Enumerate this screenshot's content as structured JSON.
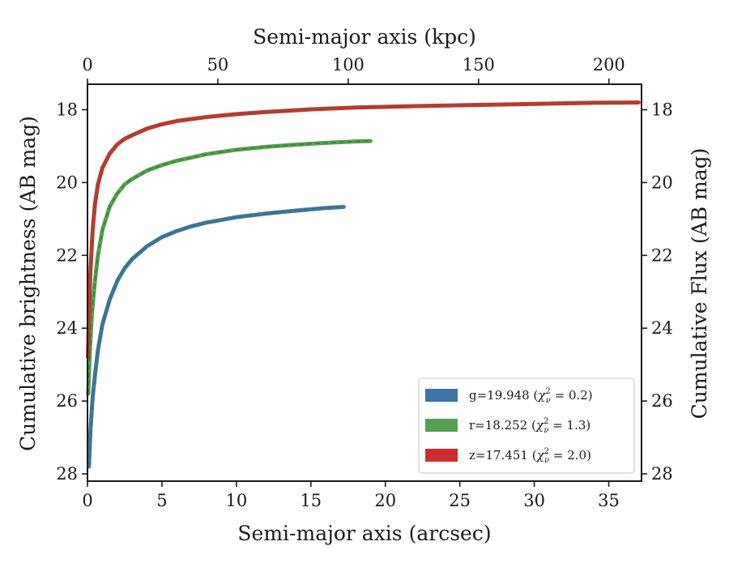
{
  "chart_data": {
    "type": "line",
    "xlabel": "Semi-major axis (arcsec)",
    "xlabel_top": "Semi-major axis (kpc)",
    "ylabel": "Cumulative brightness (AB mag)",
    "ylabel_right": "Cumulative Flux (AB mag)",
    "xlim": [
      0,
      37.2
    ],
    "ylim": [
      28.2,
      17.3
    ],
    "xlim_top_kpc": [
      0,
      212.5
    ],
    "y_inverted": true,
    "x_ticks": [
      0,
      5,
      10,
      15,
      20,
      25,
      30,
      35
    ],
    "x_tick_labels": [
      "0",
      "5",
      "10",
      "15",
      "20",
      "25",
      "30",
      "35"
    ],
    "top_ticks_kpc": [
      0,
      50,
      100,
      150,
      200
    ],
    "top_tick_labels": [
      "0",
      "50",
      "100",
      "150",
      "200"
    ],
    "y_ticks": [
      18,
      20,
      22,
      24,
      26,
      28
    ],
    "y_tick_labels": [
      "18",
      "20",
      "22",
      "24",
      "26",
      "28"
    ],
    "legend_position": "lower-right",
    "grid": false,
    "model_line_color": "#3d7a3d",
    "series": [
      {
        "name": "g",
        "label_prefix": "g=19.948 (",
        "label_suffix": " = 0.2)",
        "color": "#3f75a6",
        "x": [
          0.1,
          0.2,
          0.35,
          0.5,
          0.7,
          1.0,
          1.5,
          2.0,
          2.5,
          3.0,
          4.0,
          5.0,
          6.0,
          7.0,
          8.0,
          10.0,
          12.0,
          14.0,
          16.0,
          17.2
        ],
        "y": [
          27.8,
          26.8,
          25.9,
          25.3,
          24.6,
          23.9,
          23.2,
          22.7,
          22.35,
          22.1,
          21.75,
          21.5,
          21.33,
          21.2,
          21.1,
          20.95,
          20.85,
          20.77,
          20.7,
          20.67
        ]
      },
      {
        "name": "r",
        "label_prefix": "r=18.252 (",
        "label_suffix": " = 1.3)",
        "color": "#55a04f",
        "x": [
          0.05,
          0.15,
          0.3,
          0.5,
          0.7,
          1.0,
          1.5,
          2.0,
          2.5,
          3.0,
          4.0,
          5.0,
          6.0,
          8.0,
          10.0,
          12.0,
          14.0,
          16.0,
          18.0,
          19.0
        ],
        "y": [
          25.8,
          24.7,
          23.6,
          22.7,
          22.0,
          21.3,
          20.65,
          20.3,
          20.05,
          19.9,
          19.67,
          19.52,
          19.4,
          19.22,
          19.1,
          19.02,
          18.96,
          18.91,
          18.87,
          18.86
        ]
      },
      {
        "name": "z",
        "label_prefix": "z=17.451 (",
        "label_suffix": " = 2.0)",
        "color": "#cc2f2f",
        "x": [
          0.03,
          0.1,
          0.2,
          0.35,
          0.5,
          0.7,
          1.0,
          1.5,
          2.0,
          2.5,
          3.0,
          4.0,
          5.0,
          6.0,
          8.0,
          10.0,
          12.0,
          15.0,
          18.0,
          22.0,
          26.0,
          30.0,
          34.0,
          37.0
        ],
        "y": [
          24.8,
          23.6,
          22.4,
          21.3,
          20.6,
          20.05,
          19.6,
          19.2,
          18.95,
          18.8,
          18.7,
          18.52,
          18.4,
          18.31,
          18.2,
          18.12,
          18.06,
          17.99,
          17.94,
          17.9,
          17.87,
          17.84,
          17.81,
          17.8
        ]
      }
    ]
  },
  "legend_symbol": "χ",
  "legend_sub": "ν",
  "legend_sup": "2"
}
